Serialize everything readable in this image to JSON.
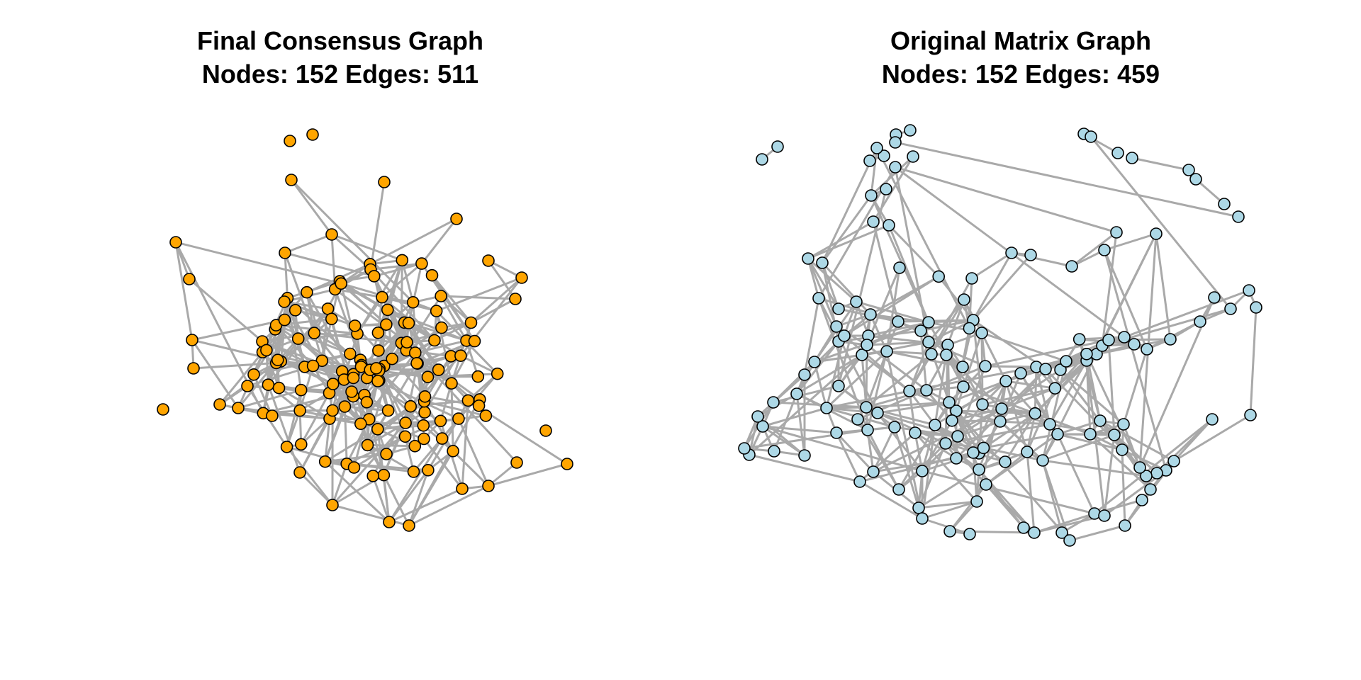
{
  "graphs": [
    {
      "title_line1": "Final Consensus Graph",
      "title_line2": "Nodes: 152 Edges: 511",
      "node_color": "#FFA500",
      "node_count": 152,
      "edge_count": 511
    },
    {
      "title_line1": "Original Matrix Graph",
      "title_line2": "Nodes: 152 Edges: 459",
      "node_color": "#ADD8E6",
      "node_count": 152,
      "edge_count": 459
    }
  ],
  "style": {
    "edge_color": "#A9A9A9",
    "node_outline": "#000000"
  }
}
